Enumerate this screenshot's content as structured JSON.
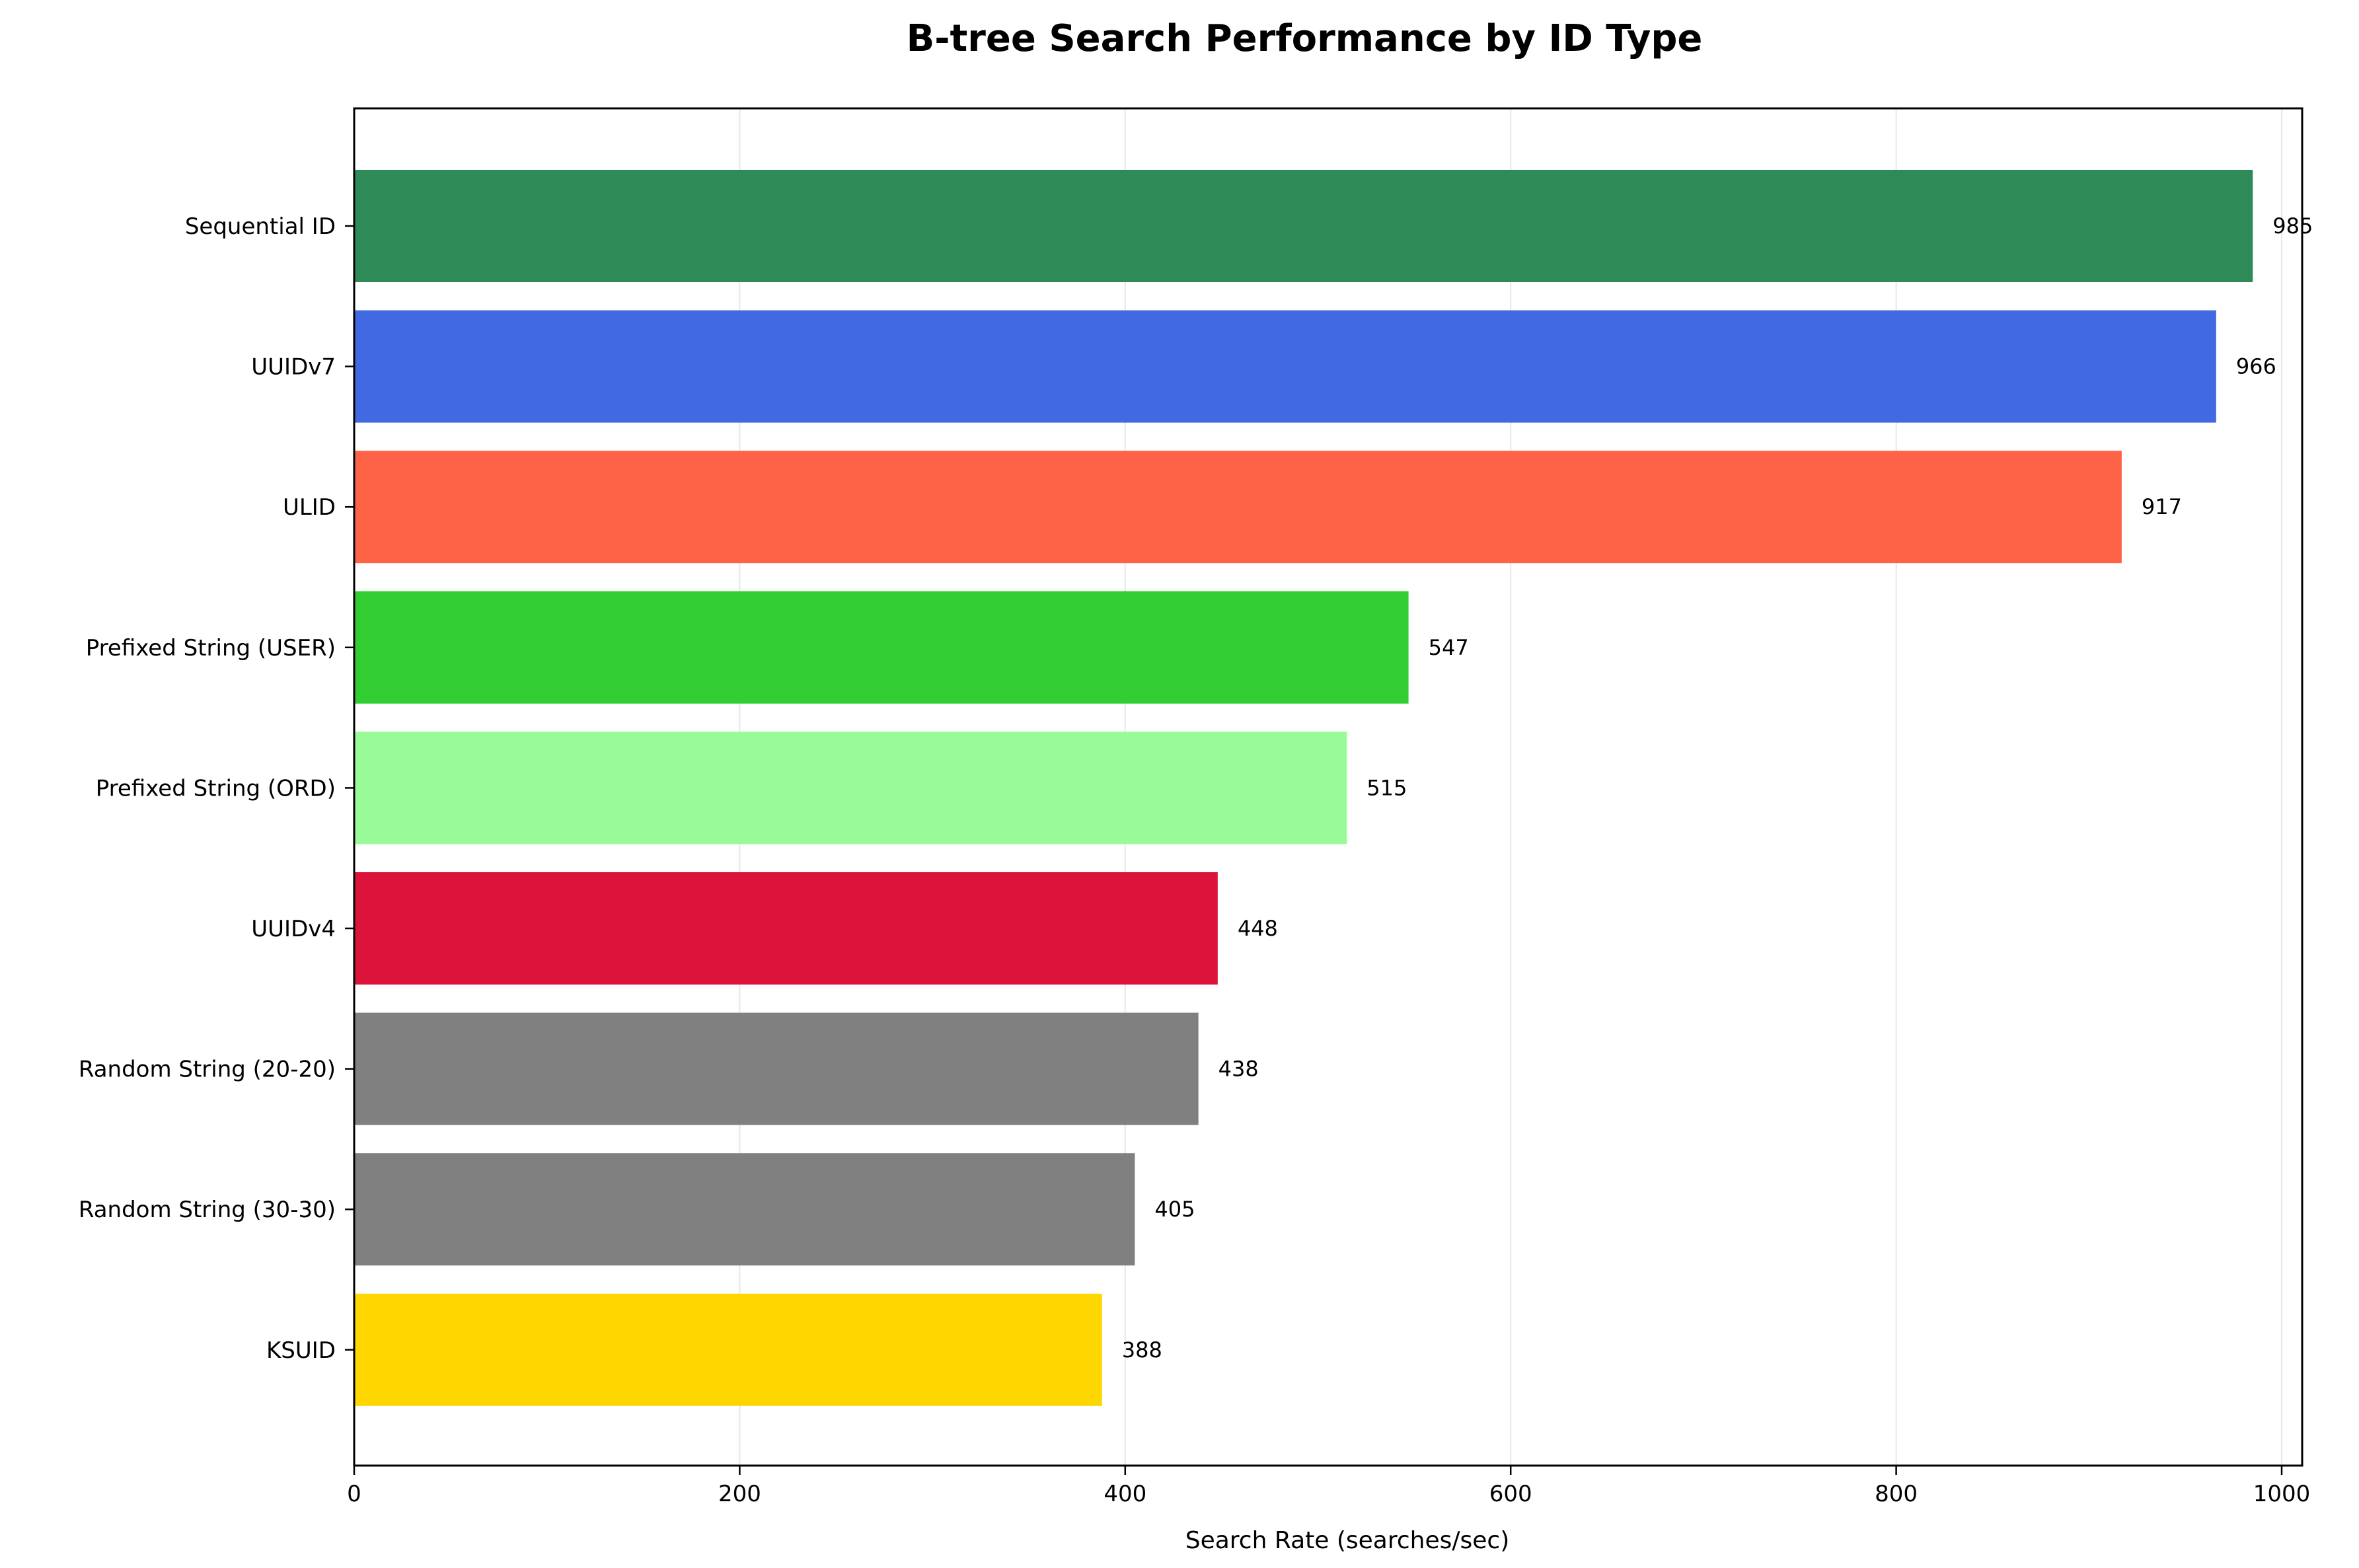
{
  "chart_data": {
    "type": "bar",
    "orientation": "horizontal",
    "title": "B-tree Search Performance by ID Type",
    "xlabel": "Search Rate (searches/sec)",
    "ylabel": "",
    "xlim": [
      0,
      1000
    ],
    "xticks": [
      0,
      200,
      400,
      600,
      800,
      1000
    ],
    "grid": true,
    "categories": [
      "Sequential ID",
      "UUIDv7",
      "ULID",
      "Prefixed String (USER)",
      "Prefixed String (ORD)",
      "UUIDv4",
      "Random String (20-20)",
      "Random String (30-30)",
      "KSUID"
    ],
    "values": [
      985,
      966,
      917,
      547,
      515,
      448,
      438,
      405,
      388
    ],
    "colors": [
      "#2e8b57",
      "#4169e1",
      "#ff6347",
      "#32cd32",
      "#98fb98",
      "#dc143c",
      "#808080",
      "#808080",
      "#ffd700"
    ]
  }
}
